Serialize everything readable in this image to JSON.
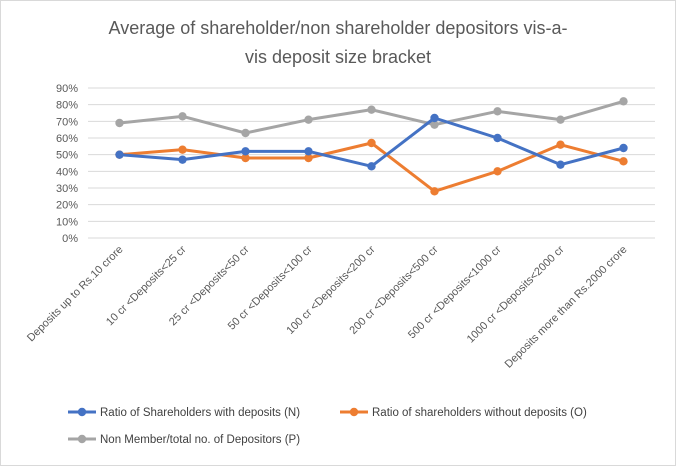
{
  "chart_data": {
    "type": "line",
    "title_lines": [
      "Average of shareholder/non shareholder depositors vis-a-",
      "vis deposit size bracket"
    ],
    "categories": [
      "Deposits up to Rs.10 crore",
      "10 cr <Deposits<25 cr",
      "25 cr <Deposits<50 cr",
      "50 cr <Deposits<100 cr",
      "100 cr <Deposits<200 cr",
      "200 cr <Deposits<500 cr",
      "500 cr <Deposits<1000 cr",
      "1000 cr <Deposits<2000 cr",
      "Deposits more than Rs.2000 crore"
    ],
    "y_ticks": [
      "0%",
      "10%",
      "20%",
      "30%",
      "40%",
      "50%",
      "60%",
      "70%",
      "80%",
      "90%"
    ],
    "ylim": [
      0,
      90
    ],
    "grid": true,
    "legend_position": "bottom",
    "series": [
      {
        "name": "Ratio of Shareholders with deposits (N)",
        "color": "#4472c4",
        "values": [
          50,
          47,
          52,
          52,
          43,
          72,
          60,
          44,
          54
        ]
      },
      {
        "name": "Ratio of shareholders without deposits (O)",
        "color": "#ed7d31",
        "values": [
          50,
          53,
          48,
          48,
          57,
          28,
          40,
          56,
          46
        ]
      },
      {
        "name": "Non Member/total no. of Depositors (P)",
        "color": "#a5a5a5",
        "values": [
          69,
          73,
          63,
          71,
          77,
          68,
          76,
          71,
          82
        ]
      }
    ]
  }
}
